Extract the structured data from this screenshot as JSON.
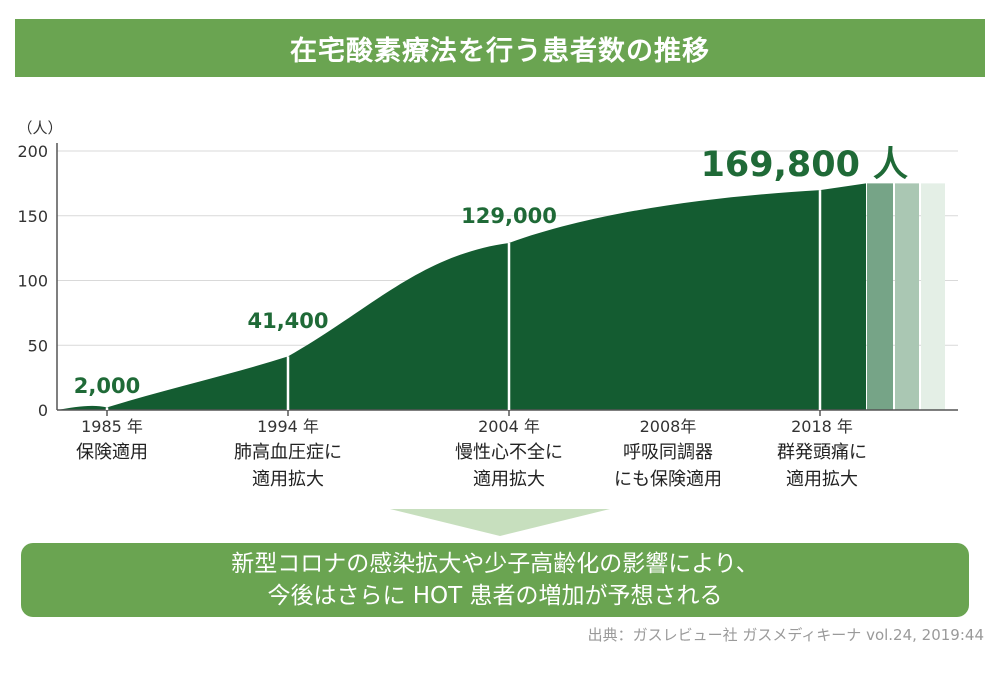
{
  "title": "在宅酸素療法を行う患者数の推移",
  "chart_data": {
    "type": "area",
    "unit_label": "（人）",
    "yticks": [
      "200",
      "150",
      "100",
      "50",
      "0"
    ],
    "ylim": [
      0,
      200
    ],
    "series": [
      {
        "x": [
          1985,
          1994,
          2004,
          2018
        ],
        "y": [
          2000,
          41400,
          129000,
          169800
        ]
      }
    ],
    "milestones": [
      {
        "year": "1985 年",
        "desc1": "保険適用",
        "desc2": "",
        "value": "2,000"
      },
      {
        "year": "1994 年",
        "desc1": "肺高血圧症に",
        "desc2": "適用拡大",
        "value": "41,400"
      },
      {
        "year": "2004 年",
        "desc1": "慢性心不全に",
        "desc2": "適用拡大",
        "value": "129,000"
      },
      {
        "year": "2008年",
        "desc1": "呼吸同調器",
        "desc2": "にも保険適用",
        "value": ""
      },
      {
        "year": "2018 年",
        "desc1": "群発頭痛に",
        "desc2": "適用拡大",
        "value": ""
      }
    ],
    "highlight_value": "169,800",
    "highlight_unit": "人",
    "colors": {
      "area": "#145c31",
      "fade": [
        "#76a487",
        "#aac7b3",
        "#e4efe6"
      ],
      "value_text": "#1f6a37",
      "grid": "#d9d9d9",
      "axis": "#555555"
    }
  },
  "note": {
    "line1": "新型コロナの感染拡大や少子高齢化の影響により、",
    "line2": "今後はさらに HOT 患者の増加が予想される"
  },
  "source": "出典：ガスレビュー社 ガスメディキーナ vol.24, 2019:44"
}
